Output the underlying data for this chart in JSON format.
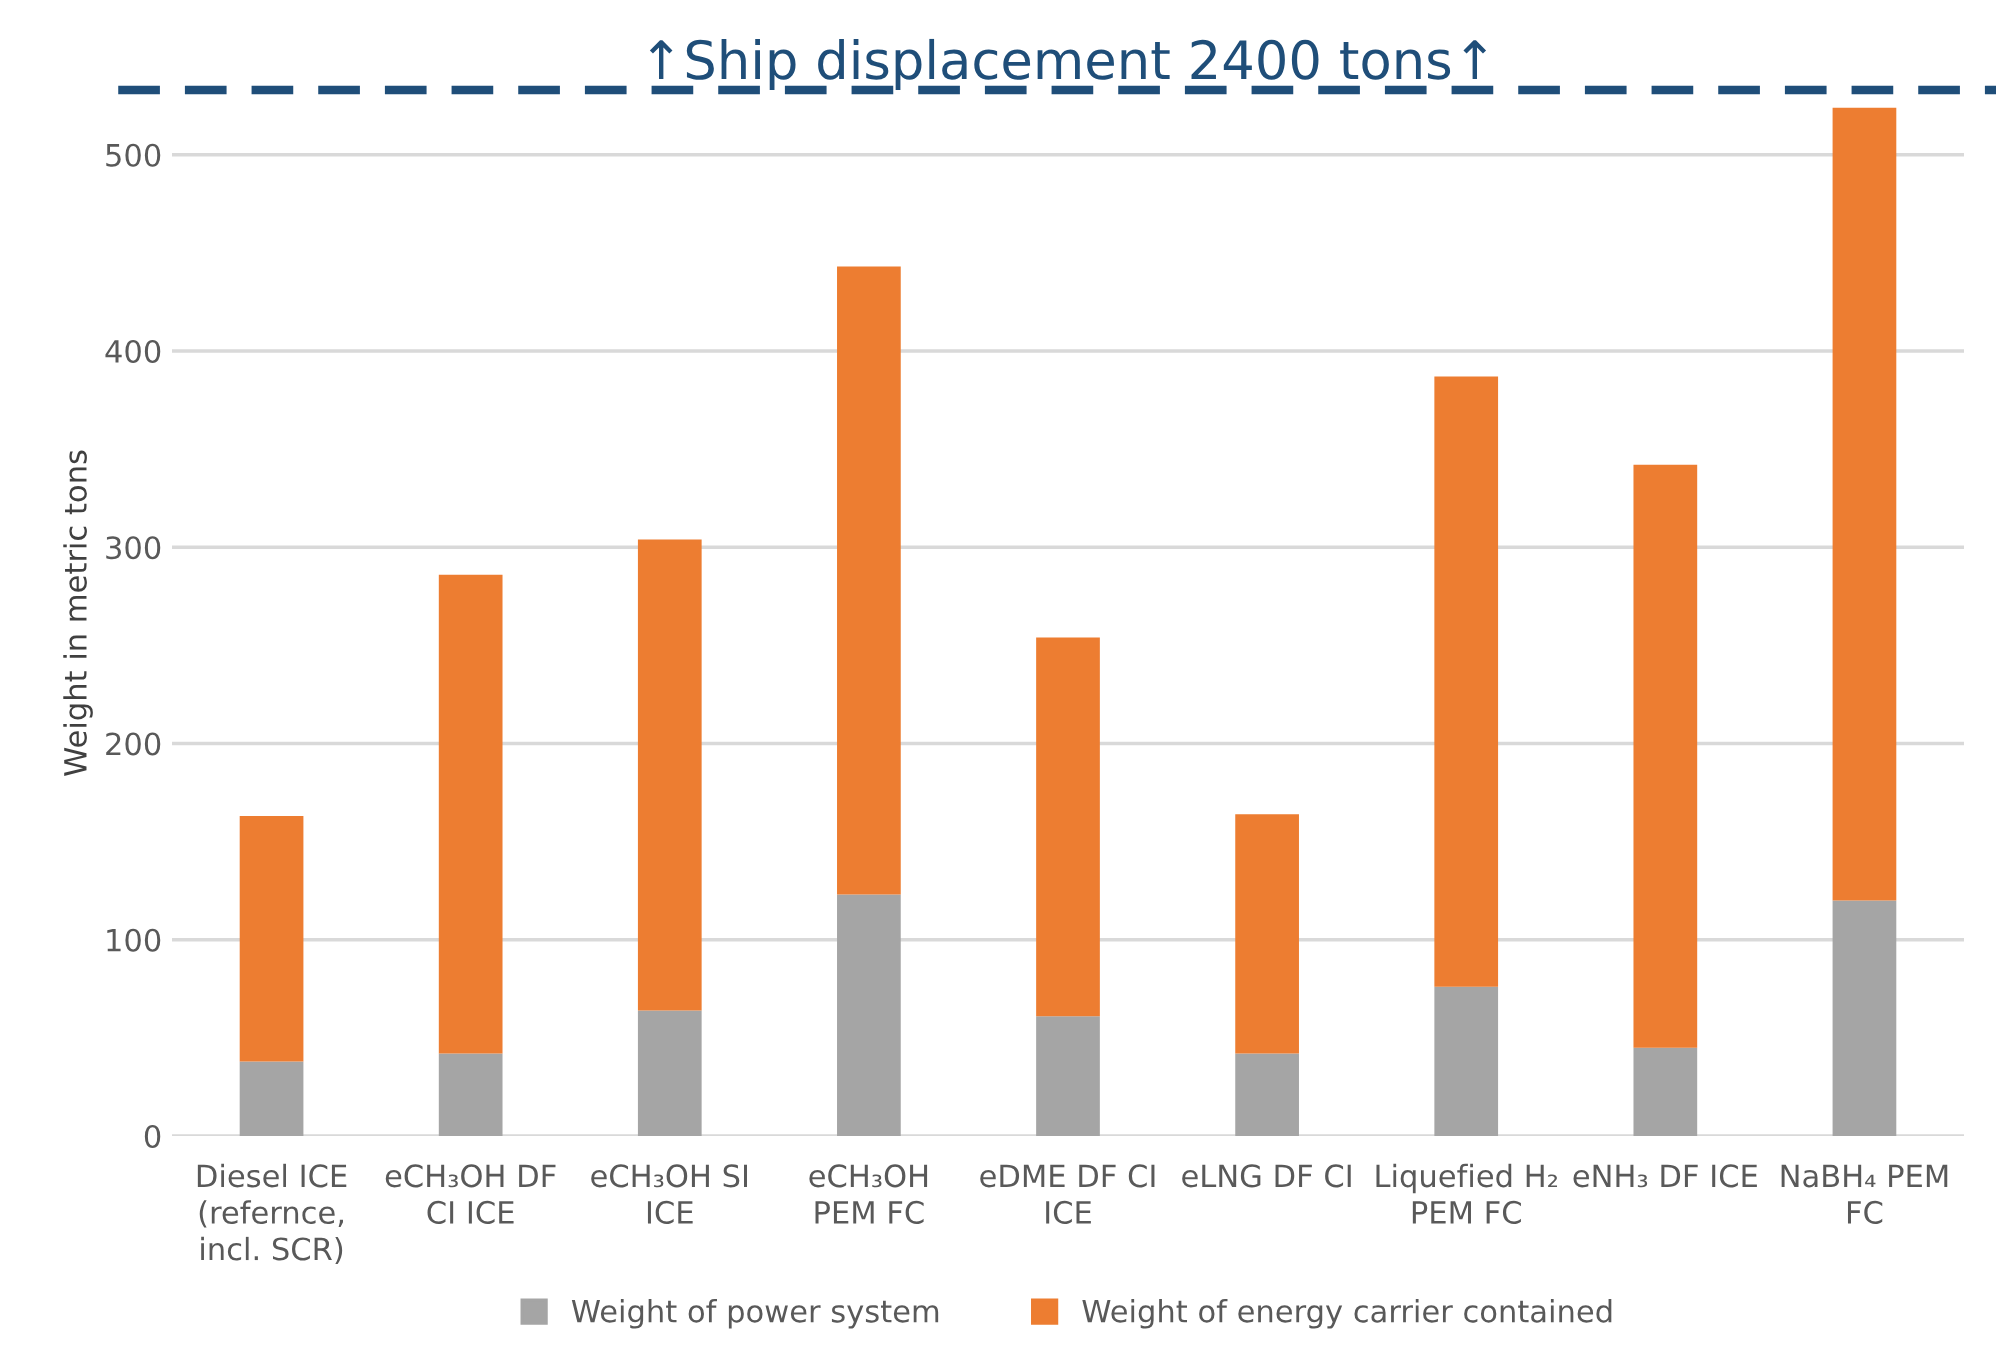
{
  "chart_data": {
    "type": "bar",
    "stacked": true,
    "ylabel": "Weight in metric tons",
    "categories": [
      "Diesel ICE (refernce, incl. SCR)",
      "eCH₃OH DF CI ICE",
      "eCH₃OH SI ICE",
      "eCH₃OH PEM FC",
      "eDME DF CI ICE",
      "eLNG DF CI",
      "Liquefied H₂ PEM FC",
      "eNH₃ DF ICE",
      "NaBH₄ PEM FC"
    ],
    "series": [
      {
        "name": "Weight of power system",
        "color": "#a5a5a5",
        "values": [
          38,
          42,
          64,
          123,
          61,
          42,
          76,
          45,
          120
        ]
      },
      {
        "name": "Weight of energy carrier contained",
        "color": "#ed7d31",
        "values": [
          125,
          244,
          240,
          320,
          193,
          122,
          311,
          297,
          404
        ]
      }
    ],
    "ylim": [
      0,
      533
    ],
    "yticks": [
      0,
      100,
      200,
      300,
      400,
      500
    ],
    "grid": "y",
    "legend": "bottom",
    "ref_lines": [
      {
        "axis": "y",
        "value": 533,
        "label": "↑Ship displacement 2400 tons↑",
        "color": "#1f4e79",
        "line_style": "dashed"
      }
    ]
  }
}
